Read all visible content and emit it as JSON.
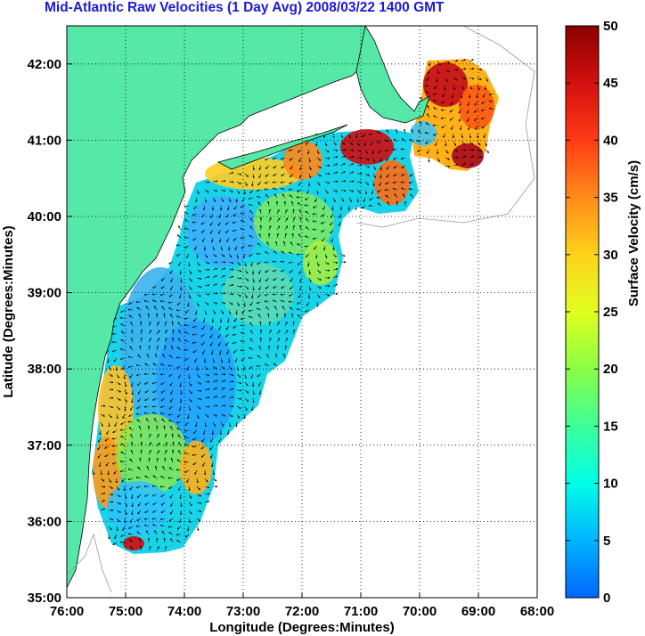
{
  "title": "Mid-Atlantic Raw Velocities (1 Day Avg) 2008/03/22 1400 GMT",
  "xlabel": "Longitude (Degrees:Minutes)",
  "ylabel": "Latitude (Degrees:Minutes)",
  "colorbar_label": "Surface Velocity (cm/s)",
  "x_ticks": [
    "76:00",
    "75:00",
    "74:00",
    "73:00",
    "72:00",
    "71:00",
    "70:00",
    "69:00",
    "68:00"
  ],
  "y_ticks": [
    "35:00",
    "36:00",
    "37:00",
    "38:00",
    "39:00",
    "40:00",
    "41:00",
    "42:00"
  ],
  "colorbar_ticks": [
    "0",
    "5",
    "10",
    "15",
    "20",
    "25",
    "30",
    "35",
    "40",
    "45",
    "50"
  ],
  "colors": {
    "land": "#55e8a6",
    "title": "#1a1adb",
    "colormap": [
      "#0066ff",
      "#00b4ff",
      "#00ffe6",
      "#3dff9a",
      "#8aff44",
      "#e0ff1f",
      "#ffd21a",
      "#ff8c1a",
      "#ff3b14",
      "#d40f0f",
      "#8a0000"
    ]
  },
  "chart_data": {
    "type": "heatmap",
    "title": "Mid-Atlantic Raw Velocities (1 Day Avg) 2008/03/22 1400 GMT",
    "xlabel": "Longitude (Degrees:Minutes)",
    "ylabel": "Latitude (Degrees:Minutes)",
    "xlim": [
      -76,
      -68
    ],
    "ylim": [
      35,
      42.5
    ],
    "colorbar": {
      "label": "Surface Velocity (cm/s)",
      "range": [
        0,
        50
      ]
    },
    "grid": true
  }
}
